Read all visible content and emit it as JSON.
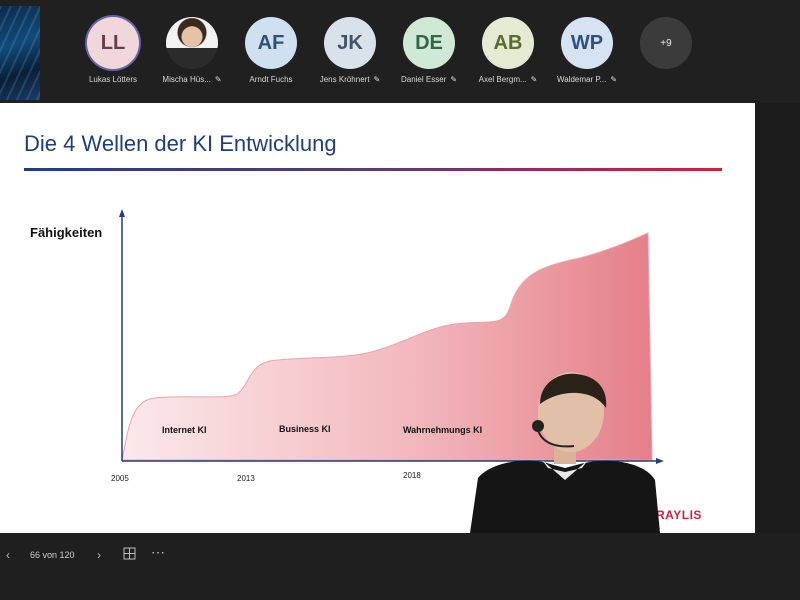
{
  "participants": [
    {
      "initials": "LL",
      "name": "Lukas Lötters",
      "bg": "#f2d7da",
      "fg": "#6b3c45",
      "active": true,
      "muted": false
    },
    {
      "initials": "",
      "name": "Mischa Hüs...",
      "bg": "#ffffff",
      "fg": "#333333",
      "photo": true,
      "muted": true
    },
    {
      "initials": "AF",
      "name": "Arndt Fuchs",
      "bg": "#cfe0f0",
      "fg": "#2d4f78",
      "muted": false
    },
    {
      "initials": "JK",
      "name": "Jens Kröhnert",
      "bg": "#d8e2ea",
      "fg": "#3f5369",
      "muted": true
    },
    {
      "initials": "DE",
      "name": "Daniel Esser",
      "bg": "#cfe9d6",
      "fg": "#2f6a44",
      "muted": true
    },
    {
      "initials": "AB",
      "name": "Axel Bergm...",
      "bg": "#e4ebd2",
      "fg": "#5b6a2f",
      "muted": true
    },
    {
      "initials": "WP",
      "name": "Waldemar P...",
      "bg": "#d6e3f5",
      "fg": "#2e4f86",
      "muted": true
    }
  ],
  "more_count": "+9",
  "slide": {
    "title": "Die 4 Wellen der KI Entwicklung",
    "ylabel": "Fähigkeiten",
    "waves": [
      "Internet KI",
      "Business KI",
      "Wahrnehmungs KI"
    ],
    "years": [
      "2005",
      "2013",
      "2018"
    ],
    "brand": "RAYLIS"
  },
  "chart_data": {
    "type": "area",
    "title": "Die 4 Wellen der KI Entwicklung",
    "ylabel": "Fähigkeiten",
    "x_labels": [
      "2005",
      "2013",
      "2018"
    ],
    "annotations": [
      "Internet KI",
      "Business KI",
      "Wahrnehmungs KI"
    ],
    "grid": false,
    "color": "#e6848e"
  },
  "controls": {
    "page": "66 von 120",
    "prev_icon": "chevron-left-icon",
    "next_icon": "chevron-right-icon",
    "more_icon": "ellipsis-icon"
  },
  "colors": {
    "title": "#1e3f7a",
    "accent_red": "#d51f3a",
    "app_bg": "#1f1f1f"
  }
}
